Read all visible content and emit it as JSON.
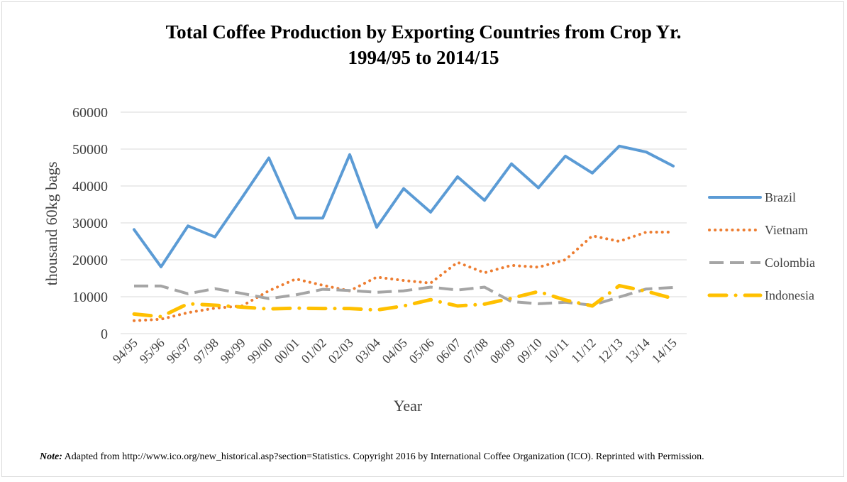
{
  "chart_data": {
    "type": "line",
    "title_line1": "Total Coffee Production by Exporting Countries from Crop Yr.",
    "title_line2": "1994/95 to 2014/15",
    "xlabel": "Year",
    "ylabel": "thousand 60kg bags",
    "ylim": [
      0,
      60000
    ],
    "yticks": [
      0,
      10000,
      20000,
      30000,
      40000,
      50000,
      60000
    ],
    "categories": [
      "94/95",
      "95/96",
      "96/97",
      "97/98",
      "98/99",
      "99/00",
      "00/01",
      "01/02",
      "02/03",
      "03/04",
      "04/05",
      "05/06",
      "06/07",
      "07/08",
      "08/09",
      "09/10",
      "10/11",
      "11/12",
      "12/13",
      "13/14",
      "14/15"
    ],
    "grid": true,
    "legend_position": "right",
    "series": [
      {
        "name": "Brazil",
        "color": "#5b9bd5",
        "dash": "solid",
        "values": [
          28200,
          18100,
          29200,
          26200,
          36800,
          47600,
          31300,
          31300,
          48500,
          28800,
          39300,
          32900,
          42500,
          36100,
          46000,
          39500,
          48100,
          43500,
          50800,
          49200,
          45400
        ]
      },
      {
        "name": "Vietnam",
        "color": "#ed7d31",
        "dash": "dot",
        "values": [
          3500,
          3900,
          5700,
          6900,
          7500,
          11600,
          14800,
          13100,
          11600,
          15300,
          14400,
          13700,
          19300,
          16500,
          18500,
          18000,
          20000,
          26500,
          25000,
          27500,
          27500
        ]
      },
      {
        "name": "Colombia",
        "color": "#a5a5a5",
        "dash": "dash",
        "values": [
          12900,
          12900,
          10800,
          12200,
          10900,
          9500,
          10500,
          12000,
          11700,
          11200,
          11600,
          12600,
          11800,
          12600,
          8700,
          8100,
          8500,
          7700,
          9900,
          12100,
          12500
        ]
      },
      {
        "name": "Indonesia",
        "color": "#ffc000",
        "dash": "dashdot",
        "values": [
          5300,
          4600,
          8100,
          7700,
          7200,
          6700,
          6900,
          6800,
          6800,
          6400,
          7500,
          9200,
          7500,
          8000,
          9600,
          11400,
          9100,
          7500,
          13000,
          11500,
          9500
        ]
      }
    ]
  },
  "note": {
    "label": "Note:",
    "text": " Adapted from http://www.ico.org/new_historical.asp?section=Statistics.  Copyright 2016 by International Coffee Organization (ICO). Reprinted with Permission."
  }
}
